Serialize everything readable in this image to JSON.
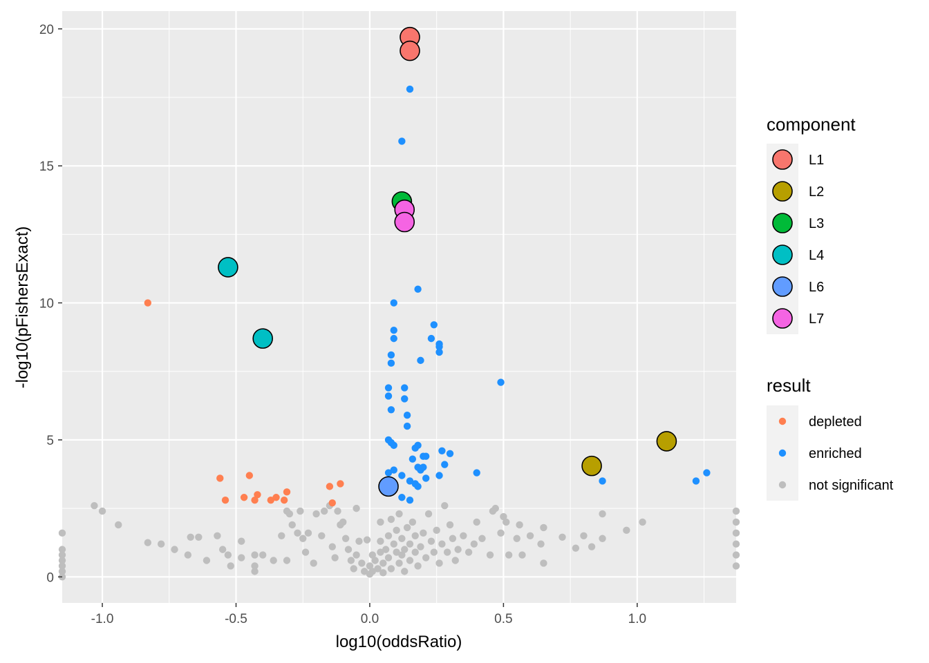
{
  "chart_data": {
    "type": "scatter",
    "title": "",
    "xlabel": "log10(oddsRatio)",
    "ylabel": "-log10(pFishersExact)",
    "xlim": [
      -1.15,
      1.37
    ],
    "ylim": [
      -0.95,
      20.65
    ],
    "x_ticks": [
      -1.0,
      -0.5,
      0.0,
      0.5,
      1.0
    ],
    "x_tick_labels": [
      "-1.0",
      "-0.5",
      "0.0",
      "0.5",
      "1.0"
    ],
    "y_ticks": [
      0,
      5,
      10,
      15,
      20
    ],
    "y_tick_labels": [
      "0",
      "5",
      "10",
      "15",
      "20"
    ],
    "grid": true,
    "panel_background": "#ebebeb",
    "legends": [
      {
        "title": "component",
        "entries": [
          {
            "label": "L1",
            "color": "#F8766D"
          },
          {
            "label": "L2",
            "color": "#B79F00"
          },
          {
            "label": "L3",
            "color": "#00BA38"
          },
          {
            "label": "L4",
            "color": "#00BFC4"
          },
          {
            "label": "L6",
            "color": "#619CFF"
          },
          {
            "label": "L7",
            "color": "#F564E3"
          }
        ]
      },
      {
        "title": "result",
        "entries": [
          {
            "label": "depleted",
            "color": "#FF7F50"
          },
          {
            "label": "enriched",
            "color": "#1E90FF"
          },
          {
            "label": "not significant",
            "color": "#BEBEBE"
          }
        ]
      }
    ],
    "series": [
      {
        "name": "not significant",
        "color": "#BEBEBE",
        "points": [
          [
            -1.15,
            1.6
          ],
          [
            -1.15,
            1.0
          ],
          [
            -1.15,
            0.8
          ],
          [
            -1.15,
            0.6
          ],
          [
            -1.15,
            0.4
          ],
          [
            -1.15,
            0.2
          ],
          [
            -1.15,
            0.0
          ],
          [
            -1.03,
            2.6
          ],
          [
            -1.0,
            2.4
          ],
          [
            -0.94,
            1.9
          ],
          [
            -0.83,
            1.25
          ],
          [
            -0.78,
            1.2
          ],
          [
            -0.73,
            1.0
          ],
          [
            -0.68,
            0.8
          ],
          [
            -0.67,
            1.45
          ],
          [
            -0.64,
            1.45
          ],
          [
            -0.61,
            0.6
          ],
          [
            -0.57,
            1.5
          ],
          [
            -0.55,
            1.0
          ],
          [
            -0.53,
            0.8
          ],
          [
            -0.52,
            0.4
          ],
          [
            -0.48,
            1.3
          ],
          [
            -0.48,
            0.7
          ],
          [
            -0.43,
            0.8
          ],
          [
            -0.43,
            0.4
          ],
          [
            -0.43,
            0.2
          ],
          [
            -0.4,
            0.8
          ],
          [
            -0.36,
            0.6
          ],
          [
            -0.33,
            1.5
          ],
          [
            -0.31,
            2.4
          ],
          [
            -0.31,
            0.6
          ],
          [
            -0.3,
            2.3
          ],
          [
            -0.29,
            1.9
          ],
          [
            -0.27,
            1.6
          ],
          [
            -0.26,
            2.4
          ],
          [
            -0.25,
            1.4
          ],
          [
            -0.24,
            0.9
          ],
          [
            -0.23,
            1.6
          ],
          [
            -0.21,
            0.5
          ],
          [
            -0.2,
            2.3
          ],
          [
            -0.18,
            1.5
          ],
          [
            -0.17,
            2.4
          ],
          [
            -0.15,
            2.6
          ],
          [
            -0.14,
            1.1
          ],
          [
            -0.13,
            0.7
          ],
          [
            -0.12,
            2.4
          ],
          [
            -0.11,
            1.9
          ],
          [
            -0.1,
            2.0
          ],
          [
            -0.09,
            1.4
          ],
          [
            -0.08,
            1.0
          ],
          [
            -0.07,
            0.6
          ],
          [
            -0.06,
            0.3
          ],
          [
            -0.05,
            0.8
          ],
          [
            -0.05,
            2.5
          ],
          [
            -0.04,
            1.3
          ],
          [
            -0.03,
            0.5
          ],
          [
            -0.02,
            0.2
          ],
          [
            -0.01,
            1.35
          ],
          [
            0.0,
            0.1
          ],
          [
            0.0,
            0.4
          ],
          [
            0.01,
            0.8
          ],
          [
            0.01,
            0.2
          ],
          [
            0.02,
            0.6
          ],
          [
            0.03,
            0.3
          ],
          [
            0.04,
            0.9
          ],
          [
            0.04,
            1.3
          ],
          [
            0.04,
            2.0
          ],
          [
            0.05,
            0.5
          ],
          [
            0.05,
            0.15
          ],
          [
            0.06,
            1.0
          ],
          [
            0.07,
            1.5
          ],
          [
            0.07,
            0.7
          ],
          [
            0.08,
            0.3
          ],
          [
            0.08,
            2.1
          ],
          [
            0.09,
            1.2
          ],
          [
            0.1,
            0.9
          ],
          [
            0.1,
            1.7
          ],
          [
            0.11,
            0.5
          ],
          [
            0.11,
            2.3
          ],
          [
            0.12,
            1.4
          ],
          [
            0.12,
            0.8
          ],
          [
            0.13,
            1.0
          ],
          [
            0.13,
            0.2
          ],
          [
            0.14,
            1.8
          ],
          [
            0.15,
            0.6
          ],
          [
            0.15,
            1.2
          ],
          [
            0.16,
            2.0
          ],
          [
            0.17,
            0.9
          ],
          [
            0.17,
            1.5
          ],
          [
            0.18,
            0.4
          ],
          [
            0.19,
            1.1
          ],
          [
            0.2,
            1.6
          ],
          [
            0.21,
            0.7
          ],
          [
            0.22,
            2.3
          ],
          [
            0.23,
            1.3
          ],
          [
            0.24,
            0.9
          ],
          [
            0.25,
            1.7
          ],
          [
            0.26,
            0.5
          ],
          [
            0.27,
            1.2
          ],
          [
            0.28,
            2.6
          ],
          [
            0.29,
            0.9
          ],
          [
            0.3,
            1.9
          ],
          [
            0.31,
            1.4
          ],
          [
            0.32,
            0.6
          ],
          [
            0.33,
            1.0
          ],
          [
            0.35,
            1.5
          ],
          [
            0.37,
            0.9
          ],
          [
            0.39,
            1.2
          ],
          [
            0.4,
            2.0
          ],
          [
            0.42,
            1.4
          ],
          [
            0.45,
            0.8
          ],
          [
            0.46,
            2.4
          ],
          [
            0.47,
            2.5
          ],
          [
            0.49,
            1.6
          ],
          [
            0.5,
            2.2
          ],
          [
            0.51,
            2.0
          ],
          [
            0.52,
            0.8
          ],
          [
            0.55,
            1.4
          ],
          [
            0.56,
            1.9
          ],
          [
            0.57,
            0.8
          ],
          [
            0.6,
            1.5
          ],
          [
            0.64,
            1.2
          ],
          [
            0.65,
            0.5
          ],
          [
            0.65,
            1.8
          ],
          [
            0.72,
            1.45
          ],
          [
            0.77,
            1.05
          ],
          [
            0.8,
            1.5
          ],
          [
            0.83,
            1.1
          ],
          [
            0.87,
            2.3
          ],
          [
            0.87,
            1.4
          ],
          [
            0.96,
            1.7
          ],
          [
            1.02,
            2.0
          ],
          [
            1.37,
            2.4
          ],
          [
            1.37,
            2.0
          ],
          [
            1.37,
            1.6
          ],
          [
            1.37,
            1.2
          ],
          [
            1.37,
            0.8
          ],
          [
            1.37,
            0.4
          ]
        ]
      },
      {
        "name": "depleted",
        "color": "#FF7F50",
        "points": [
          [
            -0.83,
            10.0
          ],
          [
            -0.56,
            3.6
          ],
          [
            -0.54,
            2.8
          ],
          [
            -0.45,
            3.7
          ],
          [
            -0.47,
            2.9
          ],
          [
            -0.43,
            2.8
          ],
          [
            -0.42,
            3.0
          ],
          [
            -0.37,
            2.8
          ],
          [
            -0.35,
            2.9
          ],
          [
            -0.32,
            2.8
          ],
          [
            -0.31,
            3.1
          ],
          [
            -0.15,
            3.3
          ],
          [
            -0.11,
            3.4
          ],
          [
            -0.14,
            2.7
          ]
        ]
      },
      {
        "name": "enriched",
        "color": "#1E90FF",
        "points": [
          [
            0.15,
            17.8
          ],
          [
            0.12,
            15.9
          ],
          [
            0.18,
            10.5
          ],
          [
            0.09,
            10.0
          ],
          [
            0.09,
            9.0
          ],
          [
            0.09,
            8.7
          ],
          [
            0.08,
            8.1
          ],
          [
            0.08,
            7.8
          ],
          [
            0.24,
            9.2
          ],
          [
            0.23,
            8.7
          ],
          [
            0.26,
            8.5
          ],
          [
            0.26,
            8.4
          ],
          [
            0.26,
            8.2
          ],
          [
            0.19,
            7.9
          ],
          [
            0.49,
            7.1
          ],
          [
            0.07,
            6.9
          ],
          [
            0.07,
            6.6
          ],
          [
            0.13,
            6.9
          ],
          [
            0.13,
            6.5
          ],
          [
            0.08,
            6.1
          ],
          [
            0.14,
            5.9
          ],
          [
            0.14,
            5.5
          ],
          [
            0.07,
            5.0
          ],
          [
            0.08,
            4.9
          ],
          [
            0.09,
            4.8
          ],
          [
            0.18,
            4.8
          ],
          [
            0.17,
            4.7
          ],
          [
            0.2,
            4.4
          ],
          [
            0.21,
            4.4
          ],
          [
            0.16,
            4.3
          ],
          [
            0.27,
            4.6
          ],
          [
            0.3,
            4.5
          ],
          [
            0.28,
            4.1
          ],
          [
            0.07,
            3.8
          ],
          [
            0.09,
            3.9
          ],
          [
            0.12,
            3.7
          ],
          [
            0.15,
            3.5
          ],
          [
            0.18,
            4.0
          ],
          [
            0.19,
            3.9
          ],
          [
            0.2,
            4.0
          ],
          [
            0.21,
            3.6
          ],
          [
            0.26,
            3.7
          ],
          [
            0.18,
            3.3
          ],
          [
            0.17,
            3.4
          ],
          [
            0.15,
            2.8
          ],
          [
            0.12,
            2.9
          ],
          [
            0.4,
            3.8
          ],
          [
            0.87,
            3.5
          ],
          [
            1.22,
            3.5
          ],
          [
            1.26,
            3.8
          ]
        ]
      }
    ],
    "components": [
      {
        "name": "L1",
        "color": "#F8766D",
        "points": [
          [
            0.15,
            19.7
          ],
          [
            0.15,
            19.2
          ]
        ]
      },
      {
        "name": "L2",
        "color": "#B79F00",
        "points": [
          [
            1.11,
            4.95
          ],
          [
            0.83,
            4.05
          ]
        ]
      },
      {
        "name": "L3",
        "color": "#00BA38",
        "points": [
          [
            0.12,
            13.7
          ]
        ]
      },
      {
        "name": "L4",
        "color": "#00BFC4",
        "points": [
          [
            -0.53,
            11.3
          ],
          [
            -0.4,
            8.7
          ]
        ]
      },
      {
        "name": "L6",
        "color": "#619CFF",
        "points": [
          [
            0.07,
            3.3
          ]
        ]
      },
      {
        "name": "L7",
        "color": "#F564E3",
        "points": [
          [
            0.13,
            13.4
          ],
          [
            0.13,
            12.95
          ]
        ]
      }
    ]
  }
}
